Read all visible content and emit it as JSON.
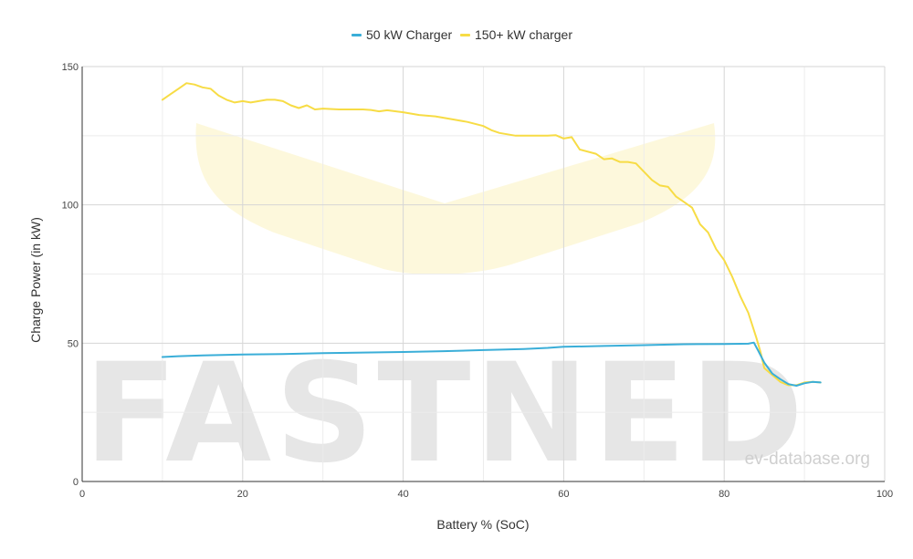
{
  "chart_data": {
    "type": "line",
    "title": "",
    "xlabel": "Battery % (SoC)",
    "ylabel": "Charge Power (in kW)",
    "xlim": [
      0,
      100
    ],
    "ylim": [
      0,
      150
    ],
    "x_ticks": [
      0,
      20,
      40,
      60,
      80,
      100
    ],
    "y_ticks": [
      0,
      50,
      100,
      150
    ],
    "grid": true,
    "legend_position": "top-center",
    "watermark": "FASTNED",
    "source": "ev-database.org",
    "series": [
      {
        "name": "50 kW Charger",
        "color": "#3aaed8",
        "points": [
          [
            10,
            45.0
          ],
          [
            12,
            45.3
          ],
          [
            15,
            45.6
          ],
          [
            20,
            45.9
          ],
          [
            25,
            46.1
          ],
          [
            30,
            46.4
          ],
          [
            35,
            46.6
          ],
          [
            40,
            46.8
          ],
          [
            45,
            47.1
          ],
          [
            50,
            47.5
          ],
          [
            55,
            47.9
          ],
          [
            58,
            48.3
          ],
          [
            60,
            48.7
          ],
          [
            65,
            49.0
          ],
          [
            70,
            49.3
          ],
          [
            75,
            49.6
          ],
          [
            80,
            49.7
          ],
          [
            83,
            49.8
          ],
          [
            83.7,
            50.2
          ],
          [
            84.2,
            47.5
          ],
          [
            85,
            43
          ],
          [
            86,
            39
          ],
          [
            87,
            37
          ],
          [
            88,
            35.2
          ],
          [
            89,
            34.6
          ],
          [
            90,
            35.5
          ],
          [
            91,
            36.0
          ],
          [
            92,
            35.8
          ]
        ]
      },
      {
        "name": "150+ kW charger",
        "color": "#f7dc45",
        "points": [
          [
            10,
            138
          ],
          [
            11,
            140
          ],
          [
            12,
            142
          ],
          [
            13,
            144
          ],
          [
            14,
            143.5
          ],
          [
            15,
            142.5
          ],
          [
            16,
            142
          ],
          [
            17,
            139.5
          ],
          [
            18,
            138
          ],
          [
            19,
            137
          ],
          [
            20,
            137.5
          ],
          [
            21,
            137
          ],
          [
            22,
            137.5
          ],
          [
            23,
            138
          ],
          [
            24,
            138
          ],
          [
            25,
            137.5
          ],
          [
            26,
            136
          ],
          [
            27,
            135
          ],
          [
            28,
            136
          ],
          [
            29,
            134.5
          ],
          [
            30,
            134.8
          ],
          [
            32,
            134.5
          ],
          [
            35,
            134.5
          ],
          [
            36,
            134.3
          ],
          [
            37,
            133.8
          ],
          [
            38,
            134.2
          ],
          [
            40,
            133.5
          ],
          [
            42,
            132.5
          ],
          [
            44,
            132
          ],
          [
            46,
            131
          ],
          [
            48,
            130
          ],
          [
            50,
            128.5
          ],
          [
            51,
            127
          ],
          [
            52,
            126
          ],
          [
            54,
            125
          ],
          [
            56,
            125
          ],
          [
            58,
            125
          ],
          [
            59,
            125.2
          ],
          [
            60,
            124
          ],
          [
            61,
            124.5
          ],
          [
            62,
            120
          ],
          [
            64,
            118.5
          ],
          [
            65,
            116.5
          ],
          [
            66,
            116.8
          ],
          [
            67,
            115.5
          ],
          [
            68,
            115.5
          ],
          [
            69,
            115
          ],
          [
            70,
            112
          ],
          [
            71,
            109
          ],
          [
            72,
            107
          ],
          [
            73,
            106.5
          ],
          [
            74,
            103
          ],
          [
            75,
            101
          ],
          [
            76,
            99
          ],
          [
            77,
            93
          ],
          [
            78,
            90
          ],
          [
            79,
            84
          ],
          [
            80,
            80
          ],
          [
            81,
            74
          ],
          [
            82,
            67
          ],
          [
            83,
            61
          ],
          [
            84,
            52
          ],
          [
            84.5,
            47
          ],
          [
            85,
            41
          ],
          [
            86,
            38.5
          ],
          [
            87,
            36
          ],
          [
            88,
            34.8
          ],
          [
            89,
            34.8
          ],
          [
            90,
            35.8
          ],
          [
            91,
            36
          ],
          [
            92,
            35.8
          ]
        ]
      }
    ]
  }
}
